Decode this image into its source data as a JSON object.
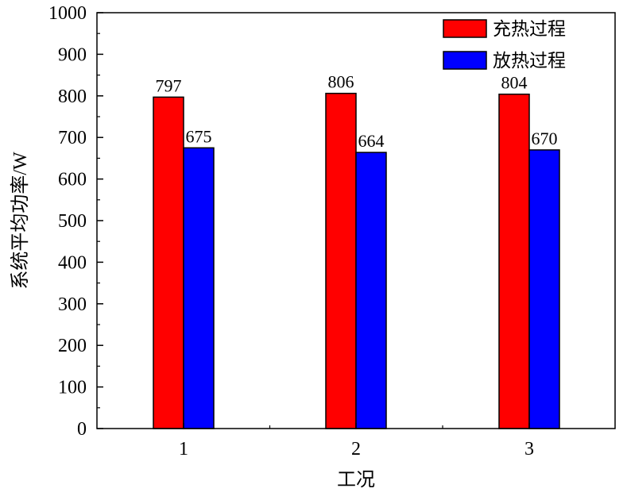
{
  "chart_data": {
    "type": "bar",
    "categories": [
      "1",
      "2",
      "3"
    ],
    "series": [
      {
        "name": "充热过程",
        "values": [
          797,
          806,
          804
        ],
        "color": "#ff0000"
      },
      {
        "name": "放热过程",
        "values": [
          675,
          664,
          670
        ],
        "color": "#0000ff"
      }
    ],
    "xlabel": "工况",
    "ylabel": "系统平均功率/W",
    "ylim": [
      0,
      1000
    ],
    "ytick_step": 100,
    "yticks": [
      "0",
      "100",
      "200",
      "300",
      "400",
      "500",
      "600",
      "700",
      "800",
      "900",
      "1000"
    ],
    "data_labels": [
      [
        "797",
        "806",
        "804"
      ],
      [
        "675",
        "664",
        "670"
      ]
    ],
    "legend_position": "top-right",
    "grid": false
  }
}
